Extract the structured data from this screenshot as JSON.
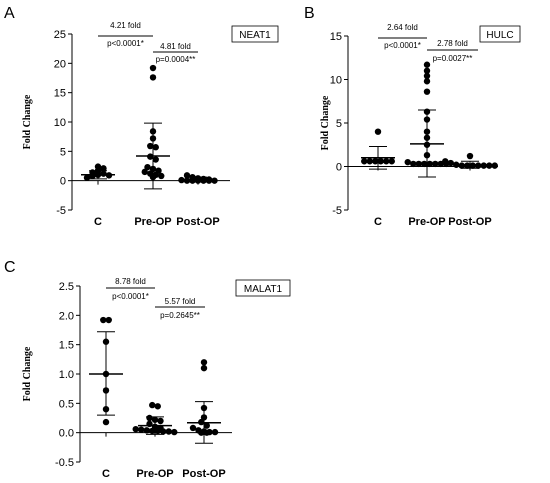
{
  "chart_data": [
    {
      "type": "scatter",
      "panel_label": "A",
      "gene_label": "NEAT1",
      "ylabel": "Fold Change",
      "categories": [
        "C",
        "Pre-OP",
        "Post-OP"
      ],
      "ylim": [
        -5,
        25
      ],
      "yticks": [
        "-5",
        "0",
        "5",
        "10",
        "15",
        "20",
        "25"
      ],
      "summary": [
        {
          "mean": 1.0,
          "sd_low": 0.3,
          "sd_high": 1.7
        },
        {
          "mean": 4.2,
          "sd_low": -1.4,
          "sd_high": 9.8
        },
        {
          "mean": 0.2,
          "sd_low": -0.2,
          "sd_high": 0.6
        }
      ],
      "points": [
        [
          0.5,
          0.8,
          1.0,
          1.2,
          1.4,
          1.7,
          2.1,
          2.4,
          0.9
        ],
        [
          19.2,
          17.6,
          8.4,
          7.2,
          5.9,
          5.7,
          4.1,
          3.6,
          2.3,
          2.0,
          1.7,
          1.5,
          1.2,
          1.0,
          0.8,
          0.6
        ],
        [
          0.9,
          0.6,
          0.4,
          0.3,
          0.2,
          0.1,
          0.0,
          0.0,
          0.0,
          0.0,
          0.0,
          0.0
        ]
      ],
      "annotations": [
        {
          "fold": "4.21 fold",
          "p": "p<0.0001*"
        },
        {
          "fold": "4.81 fold",
          "p": "p=0.0004**"
        }
      ]
    },
    {
      "type": "scatter",
      "panel_label": "B",
      "gene_label": "HULC",
      "ylabel": "Fold Change",
      "categories": [
        "C",
        "Pre-OP",
        "Post-OP"
      ],
      "ylim": [
        -5,
        15
      ],
      "yticks": [
        "-5",
        "0",
        "5",
        "10",
        "15"
      ],
      "summary": [
        {
          "mean": 1.0,
          "sd_low": -0.3,
          "sd_high": 2.3
        },
        {
          "mean": 2.6,
          "sd_low": -1.2,
          "sd_high": 6.5
        },
        {
          "mean": 0.2,
          "sd_low": -0.2,
          "sd_high": 0.6
        }
      ],
      "points": [
        [
          4.0,
          0.6,
          0.6,
          0.6,
          0.6,
          0.6,
          0.6
        ],
        [
          11.7,
          11.0,
          10.4,
          9.8,
          8.6,
          6.3,
          5.4,
          4.0,
          3.3,
          2.5,
          1.3,
          0.5,
          0.3,
          0.3,
          0.3,
          0.3,
          0.3,
          0.3,
          0.3
        ],
        [
          1.2,
          0.6,
          0.4,
          0.2,
          0.1,
          0.1,
          0.1,
          0.1,
          0.1,
          0.1,
          0.1
        ]
      ],
      "annotations": [
        {
          "fold": "2.64 fold",
          "p": "p<0.0001*"
        },
        {
          "fold": "2.78 fold",
          "p": "p=0.0027**"
        }
      ]
    },
    {
      "type": "scatter",
      "panel_label": "C",
      "gene_label": "MALAT1",
      "ylabel": "Fold Change",
      "categories": [
        "C",
        "Pre-OP",
        "Post-OP"
      ],
      "ylim": [
        -0.5,
        2.5
      ],
      "yticks": [
        "-0.5",
        "0.0",
        "0.5",
        "1.0",
        "1.5",
        "2.0",
        "2.5"
      ],
      "summary": [
        {
          "mean": 1.0,
          "sd_low": 0.3,
          "sd_high": 1.72
        },
        {
          "mean": 0.12,
          "sd_low": -0.03,
          "sd_high": 0.27
        },
        {
          "mean": 0.17,
          "sd_low": -0.18,
          "sd_high": 0.53
        }
      ],
      "points": [
        [
          1.92,
          1.92,
          1.55,
          1.0,
          0.72,
          0.4,
          0.18
        ],
        [
          0.47,
          0.45,
          0.25,
          0.22,
          0.2,
          0.15,
          0.1,
          0.08,
          0.06,
          0.05,
          0.04,
          0.03,
          0.03,
          0.02,
          0.02,
          0.01
        ],
        [
          1.2,
          1.1,
          0.42,
          0.26,
          0.18,
          0.12,
          0.08,
          0.04,
          0.02,
          0.01,
          0.01,
          0.0,
          0.0
        ]
      ],
      "annotations": [
        {
          "fold": "8.78 fold",
          "p": "p<0.0001*"
        },
        {
          "fold": "5.57 fold",
          "p": "p=0.2645**"
        }
      ]
    }
  ]
}
